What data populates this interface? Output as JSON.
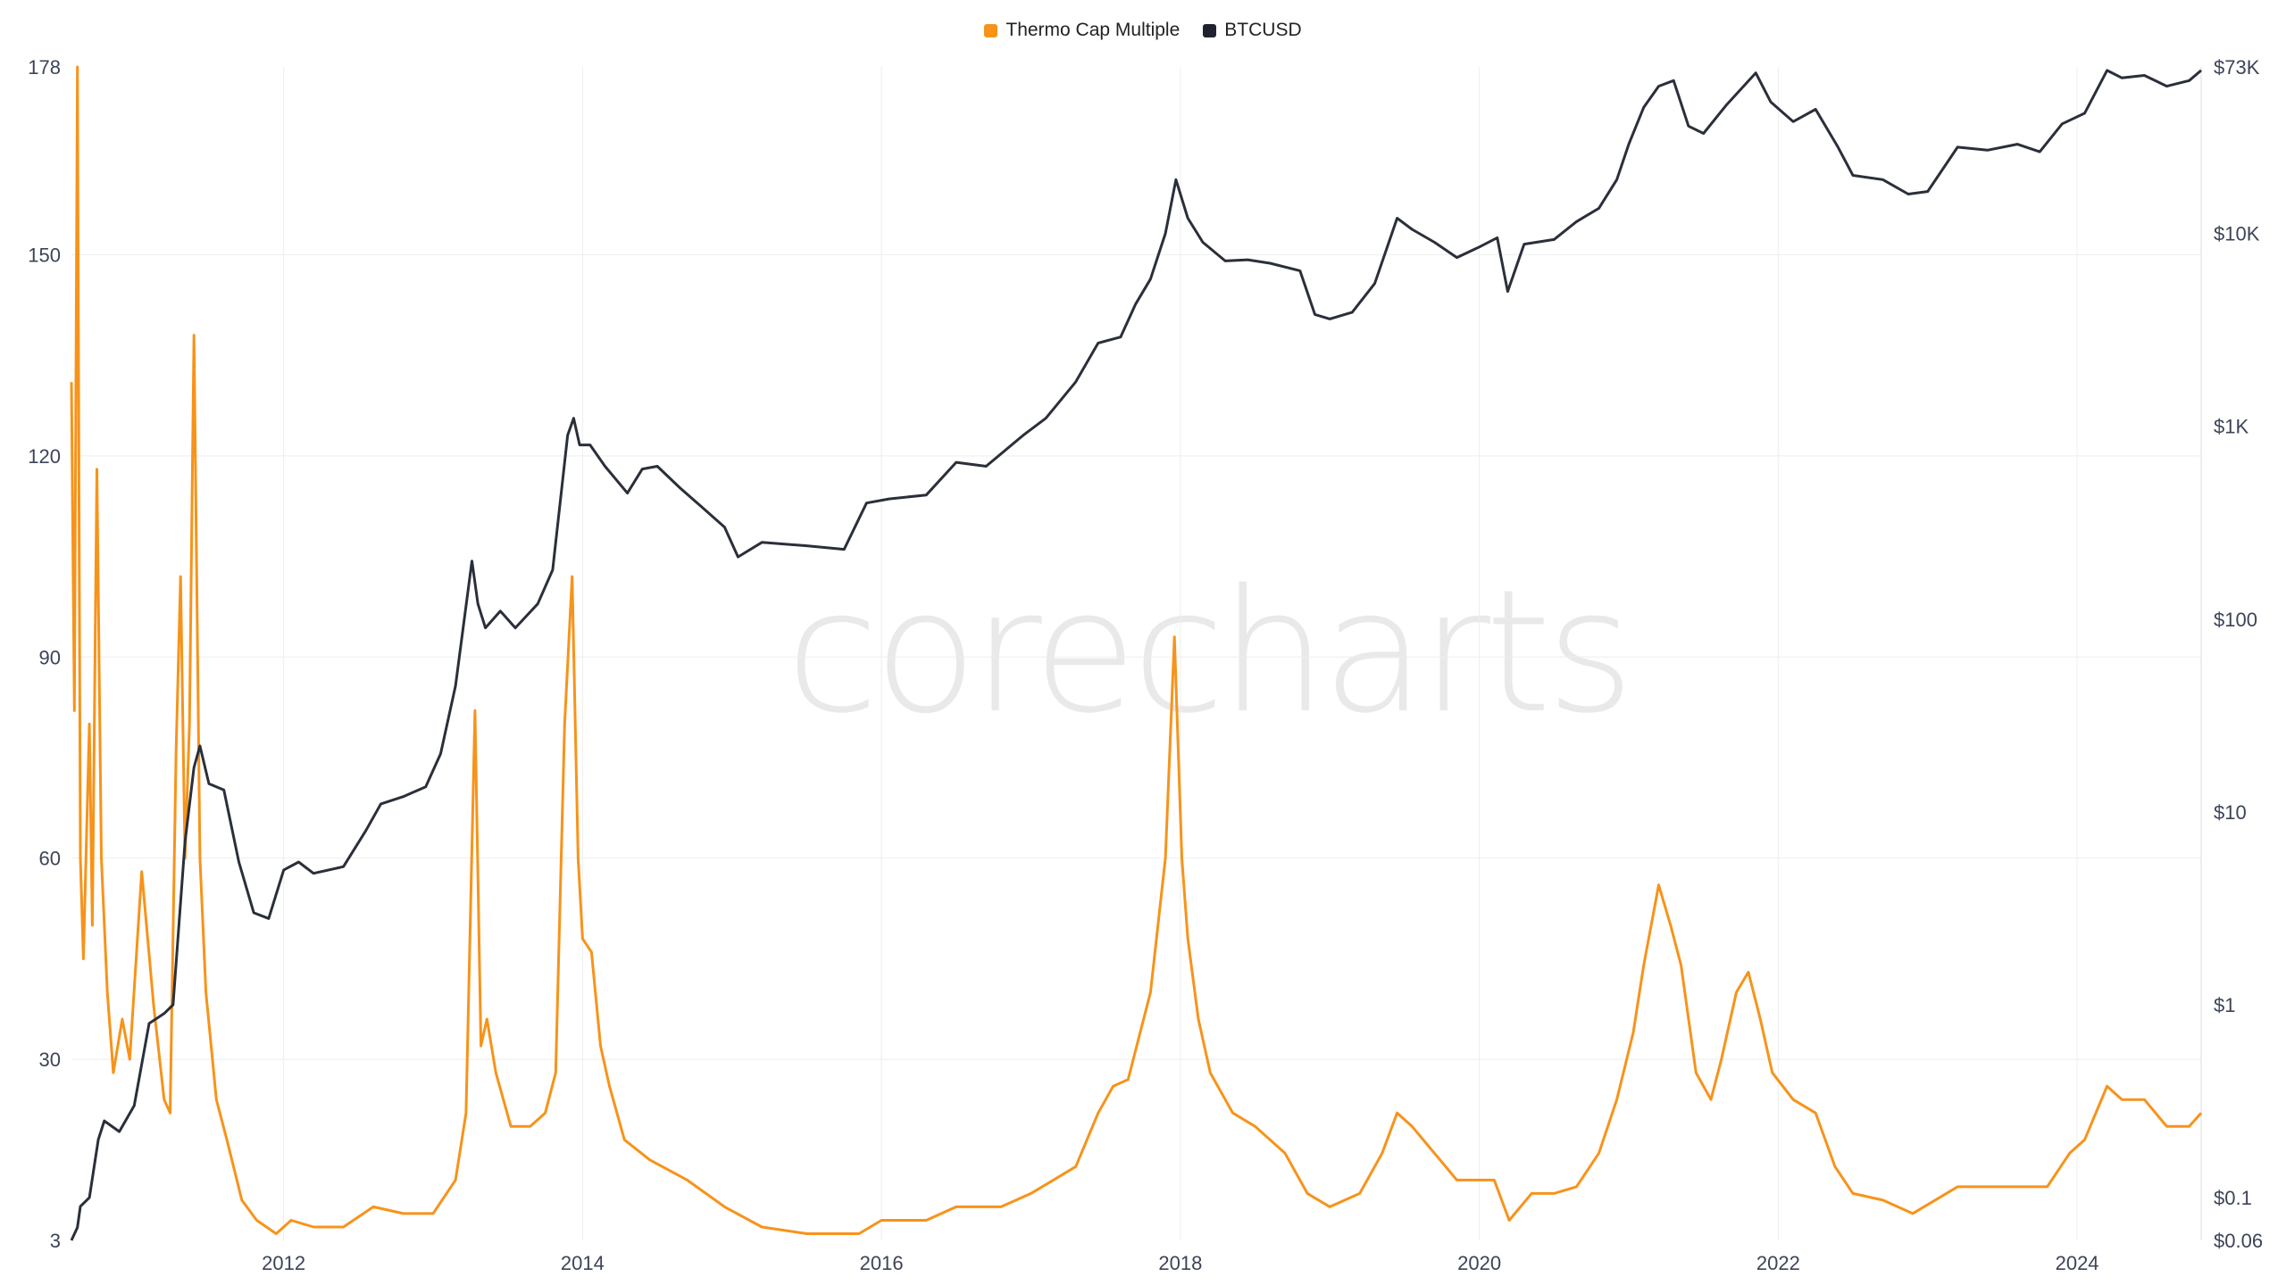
{
  "chart_data": {
    "type": "line",
    "title": "",
    "watermark": "corecharts",
    "legend_position": "top-center",
    "grid": true,
    "x_ticks": [
      "2012",
      "2014",
      "2016",
      "2018",
      "2020",
      "2022",
      "2024"
    ],
    "x_range": [
      2010.58,
      2024.83
    ],
    "y_left": {
      "range": [
        3,
        178
      ],
      "ticks": [
        "3",
        "30",
        "60",
        "90",
        "120",
        "150",
        "178"
      ]
    },
    "y_right": {
      "scale": "log",
      "range": [
        0.06,
        73000
      ],
      "ticks": [
        "$0.06",
        "$0.1",
        "$1",
        "$10",
        "$100",
        "$1K",
        "$10K",
        "$73K"
      ]
    },
    "series": [
      {
        "name": "Thermo Cap Multiple",
        "color": "#f7931a",
        "axis": "left",
        "points": [
          [
            2010.58,
            131
          ],
          [
            2010.6,
            82
          ],
          [
            2010.62,
            178
          ],
          [
            2010.64,
            60
          ],
          [
            2010.66,
            45
          ],
          [
            2010.7,
            80
          ],
          [
            2010.72,
            50
          ],
          [
            2010.75,
            118
          ],
          [
            2010.78,
            60
          ],
          [
            2010.82,
            40
          ],
          [
            2010.86,
            28
          ],
          [
            2010.92,
            36
          ],
          [
            2010.97,
            30
          ],
          [
            2011.05,
            58
          ],
          [
            2011.09,
            48
          ],
          [
            2011.13,
            38
          ],
          [
            2011.2,
            24
          ],
          [
            2011.24,
            22
          ],
          [
            2011.28,
            76
          ],
          [
            2011.31,
            102
          ],
          [
            2011.34,
            60
          ],
          [
            2011.37,
            80
          ],
          [
            2011.4,
            138
          ],
          [
            2011.44,
            60
          ],
          [
            2011.48,
            40
          ],
          [
            2011.55,
            24
          ],
          [
            2011.62,
            18
          ],
          [
            2011.72,
            9
          ],
          [
            2011.82,
            6
          ],
          [
            2011.95,
            4
          ],
          [
            2012.05,
            6
          ],
          [
            2012.2,
            5
          ],
          [
            2012.4,
            5
          ],
          [
            2012.6,
            8
          ],
          [
            2012.8,
            7
          ],
          [
            2013.0,
            7
          ],
          [
            2013.15,
            12
          ],
          [
            2013.22,
            22
          ],
          [
            2013.28,
            82
          ],
          [
            2013.32,
            32
          ],
          [
            2013.36,
            36
          ],
          [
            2013.42,
            28
          ],
          [
            2013.52,
            20
          ],
          [
            2013.65,
            20
          ],
          [
            2013.75,
            22
          ],
          [
            2013.82,
            28
          ],
          [
            2013.88,
            80
          ],
          [
            2013.93,
            102
          ],
          [
            2013.97,
            60
          ],
          [
            2014.0,
            48
          ],
          [
            2014.06,
            46
          ],
          [
            2014.12,
            32
          ],
          [
            2014.18,
            26
          ],
          [
            2014.28,
            18
          ],
          [
            2014.45,
            15
          ],
          [
            2014.7,
            12
          ],
          [
            2014.95,
            8
          ],
          [
            2015.2,
            5
          ],
          [
            2015.5,
            4
          ],
          [
            2015.85,
            4
          ],
          [
            2016.0,
            6
          ],
          [
            2016.3,
            6
          ],
          [
            2016.5,
            8
          ],
          [
            2016.8,
            8
          ],
          [
            2017.0,
            10
          ],
          [
            2017.15,
            12
          ],
          [
            2017.3,
            14
          ],
          [
            2017.45,
            22
          ],
          [
            2017.55,
            26
          ],
          [
            2017.65,
            27
          ],
          [
            2017.8,
            40
          ],
          [
            2017.9,
            60
          ],
          [
            2017.96,
            93
          ],
          [
            2018.01,
            60
          ],
          [
            2018.05,
            48
          ],
          [
            2018.12,
            36
          ],
          [
            2018.2,
            28
          ],
          [
            2018.35,
            22
          ],
          [
            2018.5,
            20
          ],
          [
            2018.7,
            16
          ],
          [
            2018.85,
            10
          ],
          [
            2019.0,
            8
          ],
          [
            2019.2,
            10
          ],
          [
            2019.35,
            16
          ],
          [
            2019.45,
            22
          ],
          [
            2019.55,
            20
          ],
          [
            2019.7,
            16
          ],
          [
            2019.85,
            12
          ],
          [
            2020.0,
            12
          ],
          [
            2020.1,
            12
          ],
          [
            2020.2,
            6
          ],
          [
            2020.35,
            10
          ],
          [
            2020.5,
            10
          ],
          [
            2020.65,
            11
          ],
          [
            2020.8,
            16
          ],
          [
            2020.92,
            24
          ],
          [
            2021.03,
            34
          ],
          [
            2021.1,
            44
          ],
          [
            2021.2,
            56
          ],
          [
            2021.28,
            50
          ],
          [
            2021.35,
            44
          ],
          [
            2021.45,
            28
          ],
          [
            2021.55,
            24
          ],
          [
            2021.62,
            30
          ],
          [
            2021.72,
            40
          ],
          [
            2021.8,
            43
          ],
          [
            2021.88,
            36
          ],
          [
            2021.96,
            28
          ],
          [
            2022.1,
            24
          ],
          [
            2022.25,
            22
          ],
          [
            2022.38,
            14
          ],
          [
            2022.5,
            10
          ],
          [
            2022.7,
            9
          ],
          [
            2022.9,
            7
          ],
          [
            2023.05,
            9
          ],
          [
            2023.2,
            11
          ],
          [
            2023.4,
            11
          ],
          [
            2023.6,
            11
          ],
          [
            2023.8,
            11
          ],
          [
            2023.95,
            16
          ],
          [
            2024.05,
            18
          ],
          [
            2024.2,
            26
          ],
          [
            2024.3,
            24
          ],
          [
            2024.45,
            24
          ],
          [
            2024.6,
            20
          ],
          [
            2024.75,
            20
          ],
          [
            2024.83,
            22
          ]
        ]
      },
      {
        "name": "BTCUSD",
        "color": "#2a2f3a",
        "axis": "right",
        "points": [
          [
            2010.58,
            0.06
          ],
          [
            2010.62,
            0.07
          ],
          [
            2010.64,
            0.09
          ],
          [
            2010.7,
            0.1
          ],
          [
            2010.76,
            0.2
          ],
          [
            2010.8,
            0.25
          ],
          [
            2010.9,
            0.22
          ],
          [
            2011.0,
            0.3
          ],
          [
            2011.1,
            0.8
          ],
          [
            2011.2,
            0.9
          ],
          [
            2011.26,
            1
          ],
          [
            2011.34,
            7
          ],
          [
            2011.4,
            17
          ],
          [
            2011.44,
            22
          ],
          [
            2011.5,
            14
          ],
          [
            2011.6,
            13
          ],
          [
            2011.7,
            5.5
          ],
          [
            2011.8,
            3
          ],
          [
            2011.9,
            2.8
          ],
          [
            2012.0,
            5
          ],
          [
            2012.1,
            5.5
          ],
          [
            2012.2,
            4.8
          ],
          [
            2012.4,
            5.2
          ],
          [
            2012.55,
            8
          ],
          [
            2012.65,
            11
          ],
          [
            2012.8,
            12
          ],
          [
            2012.95,
            13.5
          ],
          [
            2013.05,
            20
          ],
          [
            2013.15,
            45
          ],
          [
            2013.26,
            200
          ],
          [
            2013.3,
            120
          ],
          [
            2013.35,
            90
          ],
          [
            2013.45,
            110
          ],
          [
            2013.55,
            90
          ],
          [
            2013.7,
            120
          ],
          [
            2013.8,
            180
          ],
          [
            2013.9,
            900
          ],
          [
            2013.94,
            1100
          ],
          [
            2013.98,
            800
          ],
          [
            2014.05,
            800
          ],
          [
            2014.15,
            620
          ],
          [
            2014.3,
            450
          ],
          [
            2014.4,
            600
          ],
          [
            2014.5,
            620
          ],
          [
            2014.65,
            480
          ],
          [
            2014.8,
            380
          ],
          [
            2014.95,
            300
          ],
          [
            2015.04,
            210
          ],
          [
            2015.2,
            250
          ],
          [
            2015.5,
            240
          ],
          [
            2015.75,
            230
          ],
          [
            2015.9,
            400
          ],
          [
            2016.05,
            420
          ],
          [
            2016.3,
            440
          ],
          [
            2016.5,
            650
          ],
          [
            2016.7,
            620
          ],
          [
            2016.95,
            900
          ],
          [
            2017.1,
            1100
          ],
          [
            2017.3,
            1700
          ],
          [
            2017.45,
            2700
          ],
          [
            2017.6,
            2900
          ],
          [
            2017.7,
            4300
          ],
          [
            2017.8,
            5800
          ],
          [
            2017.9,
            10000
          ],
          [
            2017.97,
            19000
          ],
          [
            2018.05,
            12000
          ],
          [
            2018.15,
            9000
          ],
          [
            2018.3,
            7200
          ],
          [
            2018.45,
            7300
          ],
          [
            2018.6,
            7000
          ],
          [
            2018.8,
            6400
          ],
          [
            2018.9,
            3800
          ],
          [
            2019.0,
            3600
          ],
          [
            2019.15,
            3900
          ],
          [
            2019.3,
            5500
          ],
          [
            2019.45,
            12000
          ],
          [
            2019.55,
            10500
          ],
          [
            2019.7,
            9000
          ],
          [
            2019.85,
            7500
          ],
          [
            2020.0,
            8500
          ],
          [
            2020.12,
            9500
          ],
          [
            2020.19,
            5000
          ],
          [
            2020.3,
            8800
          ],
          [
            2020.5,
            9300
          ],
          [
            2020.65,
            11500
          ],
          [
            2020.8,
            13500
          ],
          [
            2020.92,
            19000
          ],
          [
            2021.0,
            29000
          ],
          [
            2021.1,
            45000
          ],
          [
            2021.2,
            58000
          ],
          [
            2021.3,
            62000
          ],
          [
            2021.4,
            36000
          ],
          [
            2021.5,
            33000
          ],
          [
            2021.65,
            46000
          ],
          [
            2021.85,
            68000
          ],
          [
            2021.95,
            48000
          ],
          [
            2022.1,
            38000
          ],
          [
            2022.25,
            44000
          ],
          [
            2022.4,
            28000
          ],
          [
            2022.5,
            20000
          ],
          [
            2022.7,
            19000
          ],
          [
            2022.87,
            16000
          ],
          [
            2023.0,
            16500
          ],
          [
            2023.2,
            28000
          ],
          [
            2023.4,
            27000
          ],
          [
            2023.6,
            29000
          ],
          [
            2023.75,
            26500
          ],
          [
            2023.9,
            37000
          ],
          [
            2024.05,
            42000
          ],
          [
            2024.2,
            70000
          ],
          [
            2024.3,
            64000
          ],
          [
            2024.45,
            66000
          ],
          [
            2024.6,
            58000
          ],
          [
            2024.75,
            62000
          ],
          [
            2024.83,
            70000
          ]
        ]
      }
    ]
  }
}
